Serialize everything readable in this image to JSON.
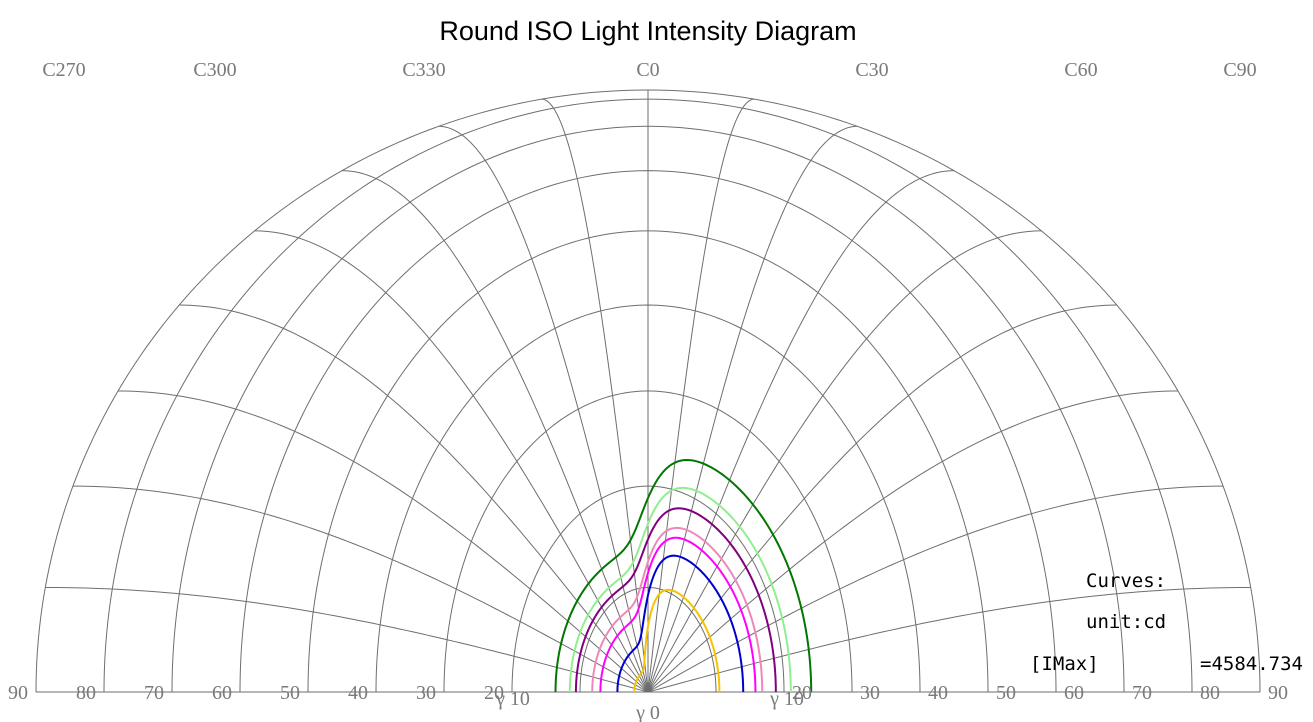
{
  "chart_data": {
    "type": "polar-isoline",
    "title": "Round ISO Light Intensity Diagram",
    "c_planes": {
      "labels": [
        "C270",
        "C300",
        "C330",
        "C0",
        "C30",
        "C60",
        "C90"
      ],
      "values": [
        270,
        300,
        330,
        0,
        30,
        60,
        90
      ],
      "step": 10
    },
    "gamma": {
      "max": 90,
      "ring_labels": [
        "20",
        "30",
        "40",
        "50",
        "60",
        "70",
        "80",
        "90"
      ],
      "ring_values": [
        20,
        30,
        40,
        50,
        60,
        70,
        80,
        90
      ],
      "bottom_labels": [
        "γ 10",
        "γ 0",
        "γ 10"
      ]
    },
    "legend": {
      "heading": "Curves:",
      "unit": "unit:cd",
      "imax_label": "[IMax]",
      "imax_value": "=4584.734"
    },
    "curves": [
      {
        "color": "#f5c300",
        "level": 1,
        "left_gamma": 2.0,
        "right_gamma": 10.5
      },
      {
        "color": "#0000cc",
        "level": 2,
        "left_gamma": 4.5,
        "right_gamma": 14.0
      },
      {
        "color": "#ff00ff",
        "level": 3,
        "left_gamma": 7.0,
        "right_gamma": 15.8
      },
      {
        "color": "#ee88bb",
        "level": 4,
        "left_gamma": 8.2,
        "right_gamma": 16.8
      },
      {
        "color": "#800080",
        "level": 5,
        "left_gamma": 10.6,
        "right_gamma": 18.8
      },
      {
        "color": "#90ee90",
        "level": 6,
        "left_gamma": 11.5,
        "right_gamma": 21.0
      },
      {
        "color": "#007700",
        "level": 7,
        "left_gamma": 13.6,
        "right_gamma": 24.0
      }
    ]
  }
}
